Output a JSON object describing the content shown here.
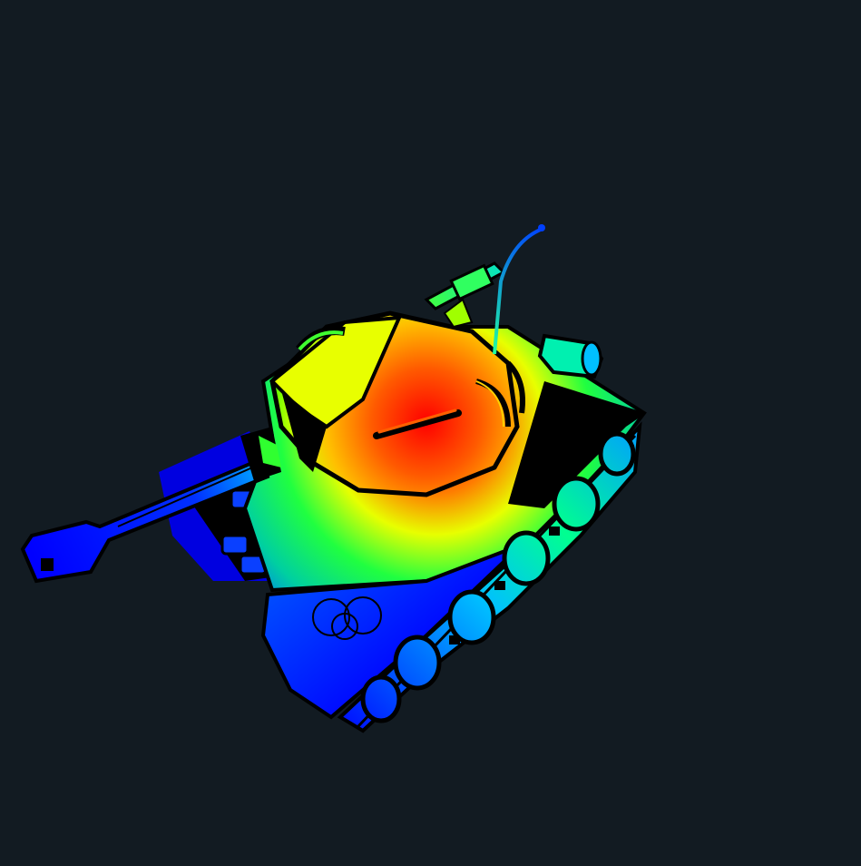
{
  "scene": {
    "background": "#121b22",
    "subject": "tank-model",
    "render_style": "height-colormap",
    "colormap": [
      "#0000ff",
      "#00a0ff",
      "#00ff80",
      "#c8ff00",
      "#ffd000",
      "#ff3000",
      "#ff0000"
    ]
  }
}
